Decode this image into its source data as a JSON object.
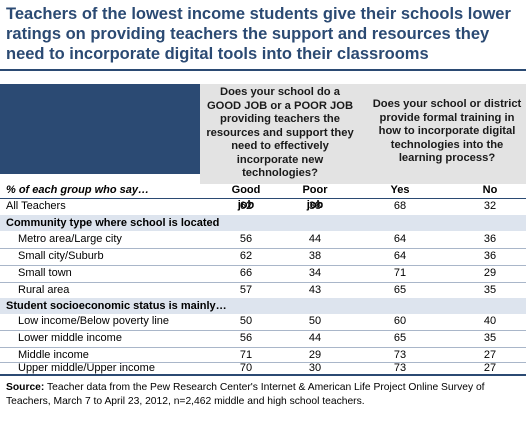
{
  "title": "Teachers of the lowest income students give their schools lower ratings on providing teachers the support and resources they need to incorporate digital tools into their classrooms",
  "question1": "Does your school do a GOOD JOB or a POOR JOB providing teachers the resources and support they need to effectively incorporate new technologies?",
  "question2": "Does your school or district provide formal training in how to incorporate digital technologies into the learning process?",
  "columns": {
    "group_label": "% of each group who say…",
    "good_job": "Good job",
    "poor_job": "Poor job",
    "yes": "Yes",
    "no": "No"
  },
  "all_teachers": {
    "label": "All Teachers",
    "values": [
      "62",
      "38",
      "68",
      "32"
    ]
  },
  "sections": [
    {
      "title": "Community type where school is located",
      "rows": [
        {
          "label": "Metro area/Large city",
          "values": [
            "56",
            "44",
            "64",
            "36"
          ]
        },
        {
          "label": "Small city/Suburb",
          "values": [
            "62",
            "38",
            "64",
            "36"
          ]
        },
        {
          "label": "Small town",
          "values": [
            "66",
            "34",
            "71",
            "29"
          ]
        },
        {
          "label": "Rural area",
          "values": [
            "57",
            "43",
            "65",
            "35"
          ]
        }
      ]
    },
    {
      "title": "Student socioeconomic status is mainly…",
      "rows": [
        {
          "label": "Low income/Below poverty line",
          "values": [
            "50",
            "50",
            "60",
            "40"
          ]
        },
        {
          "label": "Lower middle income",
          "values": [
            "56",
            "44",
            "65",
            "35"
          ]
        },
        {
          "label": "Middle income",
          "values": [
            "71",
            "29",
            "73",
            "27"
          ]
        },
        {
          "label": "Upper middle/Upper income",
          "values": [
            "70",
            "30",
            "73",
            "27"
          ]
        }
      ]
    }
  ],
  "source": {
    "label": "Source:",
    "text": "Teacher data from the Pew Research Center's Internet & American Life Project Online Survey of Teachers, March 7 to April 23, 2012, n=2,462 middle and high school teachers."
  },
  "colors": {
    "accent": "#2b4a73",
    "header_bg": "#e3e3e3",
    "section_bg": "#dde4ee"
  }
}
